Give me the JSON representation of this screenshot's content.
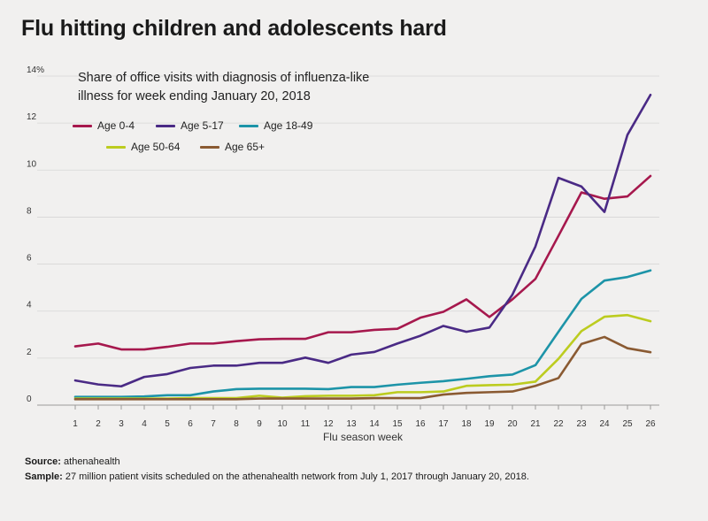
{
  "title": "Flu hitting children and adolescents hard",
  "footer": {
    "source_label": "Source:",
    "source_text": " athenahealth",
    "sample_label": "Sample:",
    "sample_text": " 27 million patient visits scheduled on the athenahealth network from July 1, 2017 through January 20, 2018."
  },
  "chart_data": {
    "type": "line",
    "subtitle": "Share of office visits with diagnosis of influenza-like illness for week ending January 20, 2018",
    "xlabel": "Flu season week",
    "ylabel": "",
    "x": [
      1,
      2,
      3,
      4,
      5,
      6,
      7,
      8,
      9,
      10,
      11,
      12,
      13,
      14,
      15,
      16,
      17,
      18,
      19,
      20,
      21,
      22,
      23,
      24,
      25,
      26
    ],
    "xlim": [
      1,
      26
    ],
    "ylim": [
      0,
      14
    ],
    "yticks": [
      0,
      2,
      4,
      6,
      8,
      10,
      12,
      14
    ],
    "ytick_labels": [
      "0",
      "2",
      "4",
      "6",
      "8",
      "10",
      "12",
      "14%"
    ],
    "grid": "horizontal",
    "legend_position": "top-left",
    "series": [
      {
        "name": "Age 0-4",
        "color": "#a6184d",
        "values": [
          2.5,
          2.62,
          2.37,
          2.37,
          2.48,
          2.62,
          2.62,
          2.72,
          2.8,
          2.82,
          2.82,
          3.1,
          3.1,
          3.2,
          3.25,
          3.72,
          3.97,
          4.5,
          3.75,
          4.5,
          5.37,
          7.2,
          9.05,
          8.78,
          8.88,
          9.75
        ]
      },
      {
        "name": "Age 5-17",
        "color": "#4a2a85",
        "values": [
          1.05,
          0.88,
          0.8,
          1.2,
          1.32,
          1.58,
          1.68,
          1.68,
          1.8,
          1.8,
          2.02,
          1.8,
          2.15,
          2.26,
          2.62,
          2.95,
          3.37,
          3.12,
          3.3,
          4.7,
          6.75,
          9.67,
          9.3,
          8.22,
          11.5,
          13.2
        ]
      },
      {
        "name": "Age 18-49",
        "color": "#1d94a8",
        "values": [
          0.35,
          0.35,
          0.35,
          0.37,
          0.42,
          0.42,
          0.58,
          0.68,
          0.7,
          0.7,
          0.7,
          0.68,
          0.77,
          0.77,
          0.87,
          0.95,
          1.02,
          1.12,
          1.23,
          1.3,
          1.7,
          3.12,
          4.52,
          5.3,
          5.45,
          5.73
        ]
      },
      {
        "name": "Age 50-64",
        "color": "#bccc1f",
        "values": [
          0.28,
          0.28,
          0.28,
          0.28,
          0.28,
          0.3,
          0.3,
          0.3,
          0.4,
          0.32,
          0.38,
          0.4,
          0.4,
          0.42,
          0.55,
          0.55,
          0.58,
          0.82,
          0.85,
          0.87,
          1.0,
          1.97,
          3.15,
          3.76,
          3.83,
          3.57
        ]
      },
      {
        "name": "Age 65+",
        "color": "#8a5a32",
        "values": [
          0.25,
          0.25,
          0.25,
          0.25,
          0.25,
          0.25,
          0.25,
          0.25,
          0.28,
          0.28,
          0.28,
          0.28,
          0.28,
          0.3,
          0.3,
          0.3,
          0.45,
          0.52,
          0.55,
          0.58,
          0.82,
          1.15,
          2.6,
          2.9,
          2.42,
          2.25
        ]
      }
    ]
  }
}
